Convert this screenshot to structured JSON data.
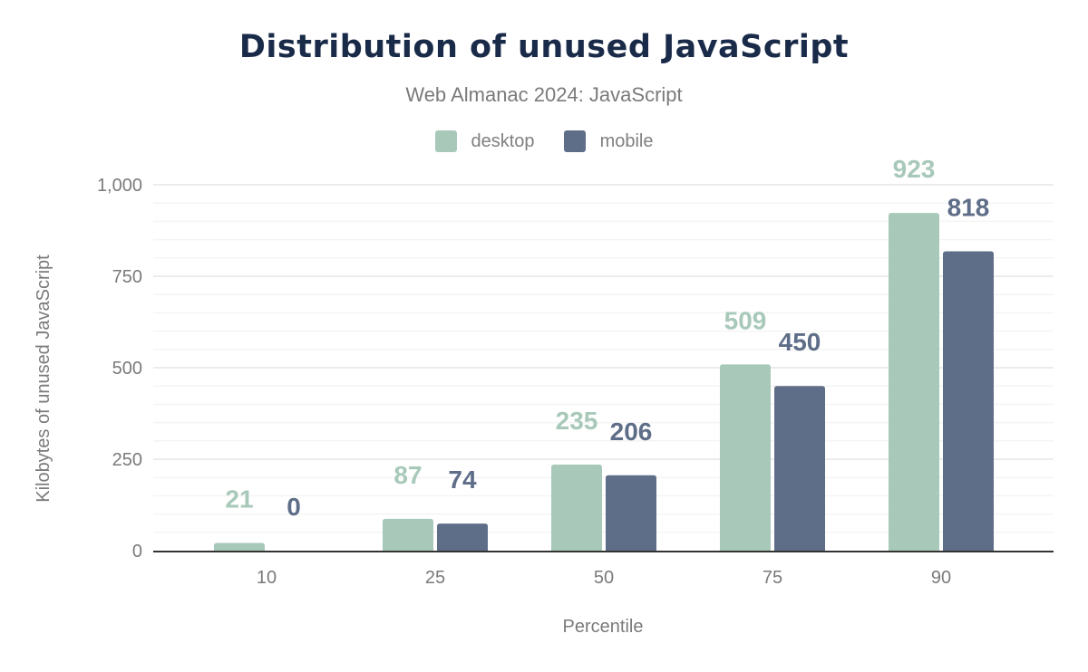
{
  "chart_data": {
    "type": "bar",
    "title": "Distribution of unused JavaScript",
    "subtitle": "Web Almanac 2024: JavaScript",
    "xlabel": "Percentile",
    "ylabel": "Kilobytes of unused JavaScript",
    "categories": [
      "10",
      "25",
      "50",
      "75",
      "90"
    ],
    "series": [
      {
        "name": "desktop",
        "color": "#a8c9b9",
        "values": [
          21,
          87,
          235,
          509,
          923
        ]
      },
      {
        "name": "mobile",
        "color": "#5f6e88",
        "values": [
          0,
          74,
          206,
          450,
          818
        ]
      }
    ],
    "ylim": [
      0,
      1000
    ],
    "yticks": [
      0,
      250,
      500,
      750,
      1000
    ],
    "ytick_labels": [
      "0",
      "250",
      "500",
      "750",
      "1,000"
    ],
    "grid": true,
    "legend": "top-center"
  }
}
